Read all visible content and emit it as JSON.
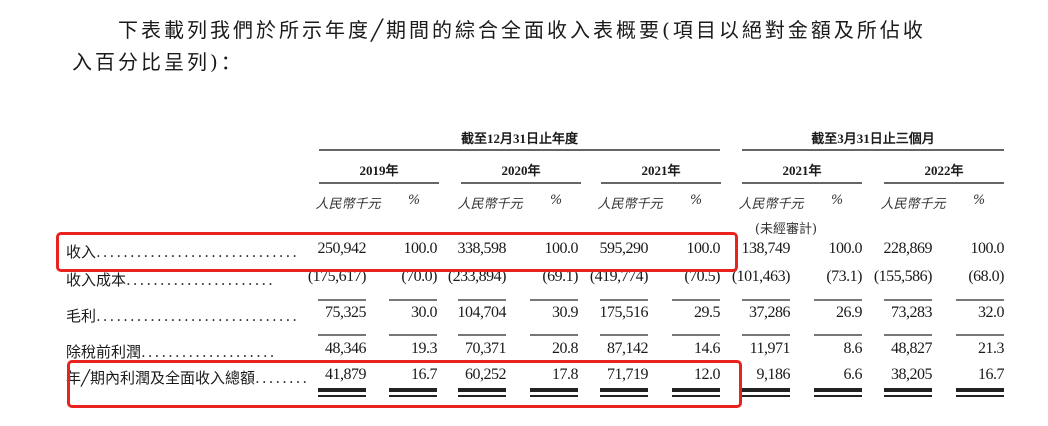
{
  "intro": {
    "line1": "下表載列我們於所示年度╱期間的綜合全面收入表概要(項目以絕對金額及所佔收",
    "line2": "入百分比呈列)："
  },
  "headers": {
    "group1": "截至12月31日止年度",
    "group2": "截至3月31日止三個月",
    "years": [
      "2019年",
      "2020年",
      "2021年",
      "2021年",
      "2022年"
    ],
    "unit_amount": "人民幣千元",
    "unit_pct": "%",
    "unaudited": "(未經審計)"
  },
  "rows": [
    {
      "label": "收入",
      "values": [
        "250,942",
        "100.0",
        "338,598",
        "100.0",
        "595,290",
        "100.0",
        "138,749",
        "100.0",
        "228,869",
        "100.0"
      ],
      "highlighted": true
    },
    {
      "label": "收入成本",
      "values": [
        "(175,617)",
        "(70.0)",
        "(233,894)",
        "(69.1)",
        "(419,774)",
        "(70.5)",
        "(101,463)",
        "(73.1)",
        "(155,586)",
        "(68.0)"
      ],
      "highlighted": false
    },
    {
      "label": "毛利",
      "values": [
        "75,325",
        "30.0",
        "104,704",
        "30.9",
        "175,516",
        "29.5",
        "37,286",
        "26.9",
        "73,283",
        "32.0"
      ],
      "highlighted": false
    },
    {
      "label": "除稅前利潤",
      "values": [
        "48,346",
        "19.3",
        "70,371",
        "20.8",
        "87,142",
        "14.6",
        "11,971",
        "8.6",
        "48,827",
        "21.3"
      ],
      "highlighted": false
    },
    {
      "label": "年╱期內利潤及全面收入總額",
      "values": [
        "41,879",
        "16.7",
        "60,252",
        "17.8",
        "71,719",
        "12.0",
        "9,186",
        "6.6",
        "38,205",
        "16.7"
      ],
      "highlighted": true
    }
  ],
  "highlight_color": "#e8231f"
}
